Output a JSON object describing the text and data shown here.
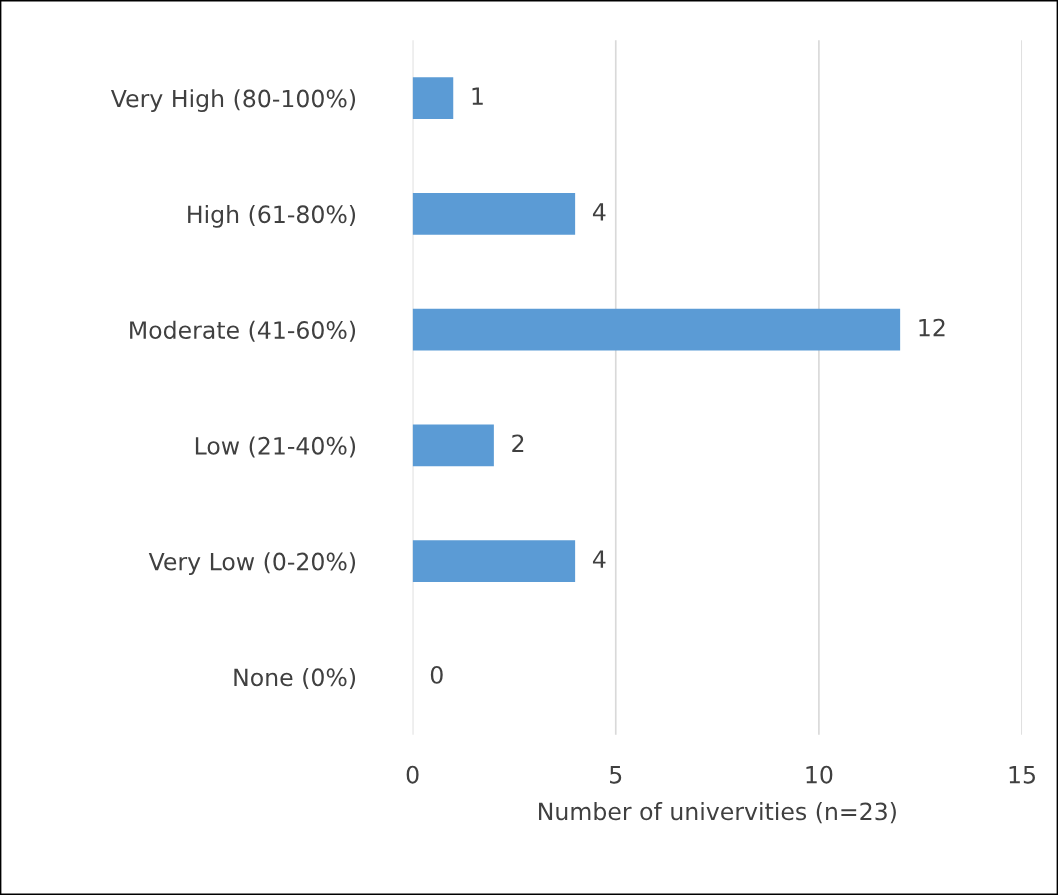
{
  "chart_data": {
    "type": "bar",
    "orientation": "horizontal",
    "categories": [
      "Very High (80-100%)",
      "High (61-80%)",
      "Moderate (41-60%)",
      "Low (21-40%)",
      "Very Low (0-20%)",
      "None (0%)"
    ],
    "values": [
      1,
      4,
      12,
      2,
      4,
      0
    ],
    "color": "#5b9bd5",
    "xlabel": "Number of univervities (n=23)",
    "xlim": [
      0,
      15
    ],
    "xticks": [
      0,
      5,
      10,
      15
    ],
    "grid": "x",
    "data_labels": true,
    "legend": false
  }
}
